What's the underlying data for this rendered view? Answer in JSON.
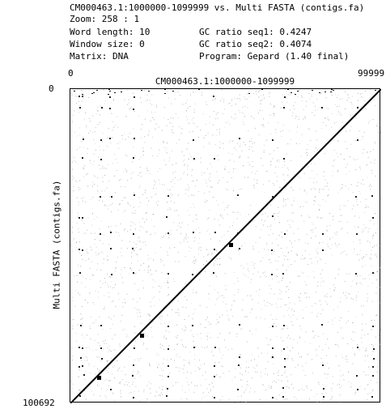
{
  "header": {
    "title_line": "CM000463.1:1000000-1099999 vs. Multi FASTA (contigs.fa)",
    "zoom": "Zoom: 258 : 1",
    "word_length": "Word length: 10",
    "window_size": "Window size: 0",
    "matrix": "Matrix: DNA",
    "gc_seq1": "GC ratio seq1: 0.4247",
    "gc_seq2": "GC ratio seq2: 0.4074",
    "program": "Program: Gepard (1.40 final)"
  },
  "axes": {
    "x_title": "CM000463.1:1000000-1099999",
    "y_title": "Multi FASTA (contigs.fa)",
    "x_min_label": "0",
    "x_max_label": "99999",
    "y_min_label": "0",
    "y_max_label": "100692"
  },
  "colors": {
    "background": "#ffffff",
    "diagonal": "#000000",
    "noise": "#9a9a9a"
  }
}
